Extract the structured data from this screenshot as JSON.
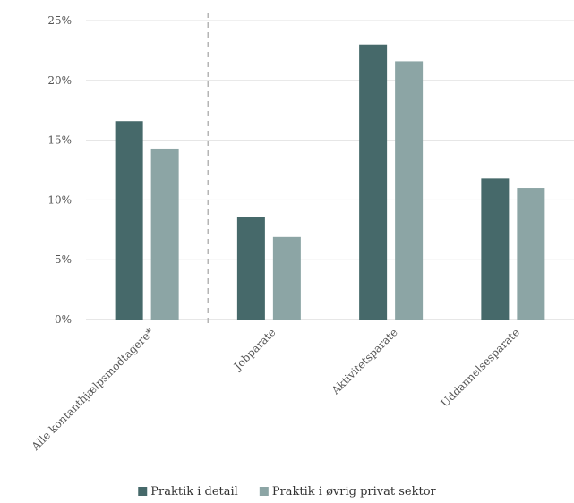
{
  "chart_data": {
    "type": "bar",
    "categories": [
      "Alle kontanthjælpsmodtagere*",
      "Jobparate",
      "Aktivitetsparate",
      "Uddannelsesparate"
    ],
    "series": [
      {
        "name": "Praktik i detail",
        "color": "#46696a",
        "values": [
          16.6,
          8.6,
          23.0,
          11.8
        ]
      },
      {
        "name": "Praktik i øvrig privat sektor",
        "color": "#8ca5a5",
        "values": [
          14.3,
          6.9,
          21.6,
          11.0
        ]
      }
    ],
    "yticks": [
      "0%",
      "5%",
      "10%",
      "15%",
      "20%",
      "25%"
    ],
    "ylim": [
      0,
      25
    ],
    "grid": true,
    "separator_after_category": 0,
    "legend_position": "bottom-center"
  }
}
